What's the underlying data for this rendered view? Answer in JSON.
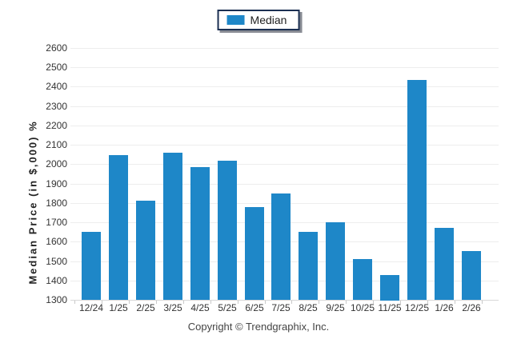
{
  "legend": {
    "label": "Median"
  },
  "axes": {
    "y_title": "Median Price (in $,000) %"
  },
  "footer": {
    "copyright": "Copyright © Trendgraphix, Inc."
  },
  "colors": {
    "bar": "#1E87C8",
    "legend_border": "#1B2F52",
    "gridline": "#EDEDED",
    "baseline": "#D8D8D8",
    "tick": "#C9C9C9",
    "axis_text": "#333333"
  },
  "chart_data": {
    "type": "bar",
    "title": "",
    "categories": [
      "12/24",
      "1/25",
      "2/25",
      "3/25",
      "4/25",
      "5/25",
      "6/25",
      "7/25",
      "8/25",
      "9/25",
      "10/25",
      "11/25",
      "12/25",
      "1/26",
      "2/26"
    ],
    "series": [
      {
        "name": "Median",
        "values": [
          1650,
          2045,
          1810,
          2060,
          1985,
          2020,
          1780,
          1850,
          1650,
          1700,
          1510,
          1430,
          2435,
          1670,
          1550
        ]
      }
    ],
    "xlabel": "",
    "ylabel": "Median Price (in $,000) %",
    "ylim": [
      1300,
      2600
    ],
    "ytick_step": 100,
    "yticks": [
      1300,
      1400,
      1500,
      1600,
      1700,
      1800,
      1900,
      2000,
      2100,
      2200,
      2300,
      2400,
      2500,
      2600
    ],
    "grid": "horizontal",
    "legend_position": "top-center"
  }
}
